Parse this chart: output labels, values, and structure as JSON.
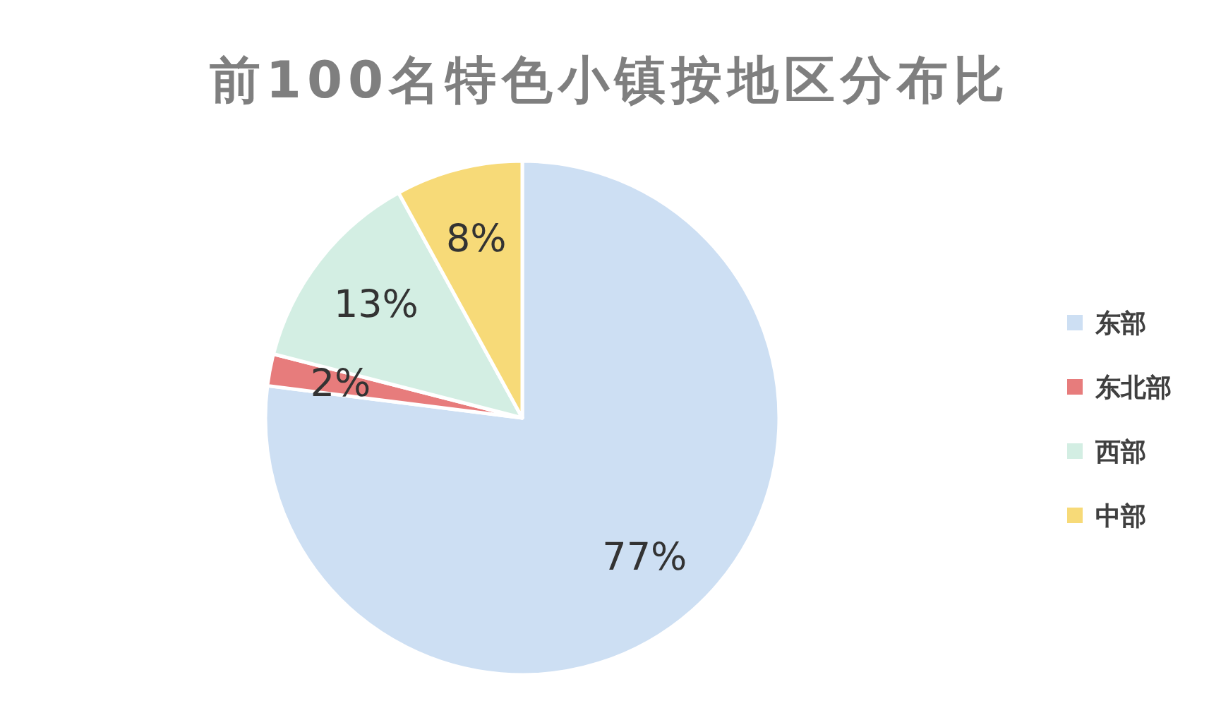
{
  "chart_data": {
    "type": "pie",
    "title": "前100名特色小镇按地区分布比",
    "categories": [
      "东部",
      "东北部",
      "西部",
      "中部"
    ],
    "values": [
      77,
      2,
      13,
      8
    ],
    "colors": [
      "#cddff3",
      "#e77c7c",
      "#d3eee3",
      "#f7da78"
    ],
    "value_labels": [
      "77%",
      "2%",
      "13%",
      "8%"
    ],
    "legend": "right"
  }
}
